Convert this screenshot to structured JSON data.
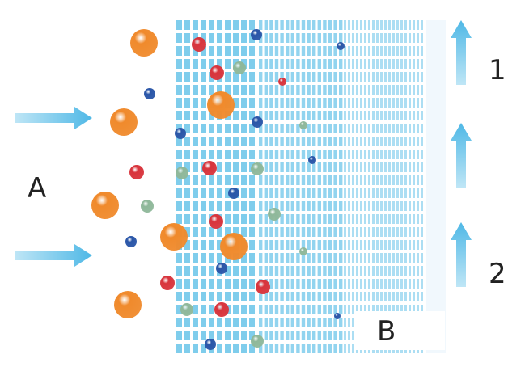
{
  "labels": {
    "a": "A",
    "b": "B",
    "one": "1",
    "two": "2"
  },
  "colors": {
    "grid": "#7fcdec",
    "arrow": "#5bbfe8",
    "orange": "#f08a2c",
    "red": "#d8343c",
    "blue": "#2a56a8",
    "green": "#8fb89a"
  }
}
